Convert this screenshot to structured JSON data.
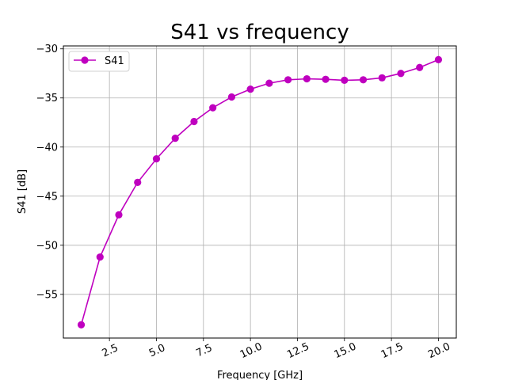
{
  "chart_data": {
    "type": "line",
    "title": "S41 vs frequency",
    "xlabel": "Frequency [GHz]",
    "ylabel": "S41 [dB]",
    "xlim": [
      0.05,
      20.95
    ],
    "ylim": [
      -59.45,
      -29.7
    ],
    "xticks": [
      2.5,
      5.0,
      7.5,
      10.0,
      12.5,
      15.0,
      17.5,
      20.0
    ],
    "xtick_labels": [
      "2.5",
      "5.0",
      "7.5",
      "10.0",
      "12.5",
      "15.0",
      "17.5",
      "20.0"
    ],
    "yticks": [
      -55,
      -50,
      -45,
      -40,
      -35,
      -30
    ],
    "ytick_labels": [
      "−55",
      "−50",
      "−45",
      "−40",
      "−35",
      "−30"
    ],
    "grid": true,
    "legend_position": "top-left",
    "series": [
      {
        "name": "S41",
        "color": "#bf00bf",
        "marker": "circle",
        "x": [
          1,
          2,
          3,
          4,
          5,
          6,
          7,
          8,
          9,
          10,
          11,
          12,
          13,
          14,
          15,
          16,
          17,
          18,
          19,
          20
        ],
        "y": [
          -58.1,
          -51.2,
          -46.9,
          -43.6,
          -41.2,
          -39.1,
          -37.4,
          -36.0,
          -34.9,
          -34.1,
          -33.5,
          -33.15,
          -33.05,
          -33.1,
          -33.2,
          -33.15,
          -32.95,
          -32.5,
          -31.9,
          -31.1
        ]
      }
    ]
  }
}
